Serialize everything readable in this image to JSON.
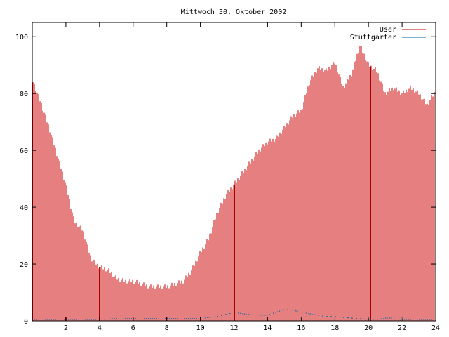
{
  "chart_data": {
    "type": "bar",
    "title": "Mittwoch 30. Oktober 2002",
    "xlabel": "",
    "ylabel": "",
    "xlim": [
      0,
      24
    ],
    "ylim": [
      0,
      105
    ],
    "xticks": [
      "2",
      "4",
      "6",
      "8",
      "10",
      "12",
      "14",
      "16",
      "18",
      "20",
      "22",
      "24"
    ],
    "yticks": [
      "0",
      "20",
      "40",
      "60",
      "80",
      "100"
    ],
    "grid": false,
    "legend": "top-right",
    "series": [
      {
        "name": "User",
        "style": "impulses",
        "color": "#cc0000",
        "x": [
          0.0,
          0.5,
          1.0,
          1.5,
          2.0,
          2.5,
          3.0,
          3.5,
          4.0,
          4.5,
          5.0,
          5.5,
          6.0,
          6.5,
          7.0,
          7.5,
          8.0,
          8.5,
          9.0,
          9.5,
          10.0,
          10.5,
          11.0,
          11.5,
          12.0,
          12.5,
          13.0,
          13.5,
          14.0,
          14.5,
          15.0,
          15.5,
          16.0,
          16.5,
          17.0,
          17.5,
          18.0,
          18.5,
          19.0,
          19.5,
          20.0,
          20.5,
          21.0,
          21.5,
          22.0,
          22.5,
          23.0,
          23.5,
          24.0
        ],
        "values": [
          85,
          77,
          68,
          58,
          48,
          35,
          32,
          22,
          19,
          18,
          15,
          14,
          14,
          13,
          12,
          12,
          12,
          13,
          14,
          18,
          24,
          29,
          38,
          44,
          48,
          52,
          56,
          60,
          63,
          64,
          68,
          72,
          74,
          84,
          89,
          88,
          91,
          82,
          87,
          97,
          90,
          88,
          80,
          82,
          80,
          82,
          80,
          76,
          81
        ]
      },
      {
        "name": "Stuttgarter",
        "style": "line",
        "color": "#0066aa",
        "x": [
          0.0,
          1.0,
          2.0,
          3.0,
          4.0,
          5.0,
          6.0,
          7.0,
          8.0,
          9.0,
          10.0,
          10.5,
          11.0,
          11.5,
          12.0,
          12.5,
          13.0,
          13.5,
          14.0,
          14.5,
          15.0,
          15.5,
          16.0,
          16.5,
          17.0,
          17.5,
          18.0,
          18.5,
          19.0,
          19.5,
          20.0,
          20.5,
          21.0,
          21.5,
          22.0,
          23.0,
          24.0
        ],
        "values": [
          0.5,
          0.5,
          0.5,
          0.5,
          0.5,
          0.8,
          0.8,
          0.8,
          0.8,
          0.8,
          0.8,
          1.2,
          1.5,
          2.2,
          3.0,
          2.5,
          2.2,
          2.0,
          2.0,
          3.0,
          4.0,
          3.8,
          3.0,
          2.5,
          2.0,
          1.5,
          1.5,
          1.2,
          1.0,
          0.8,
          0.5,
          0.5,
          1.0,
          1.0,
          0.5,
          0.5,
          0.5
        ]
      }
    ]
  }
}
